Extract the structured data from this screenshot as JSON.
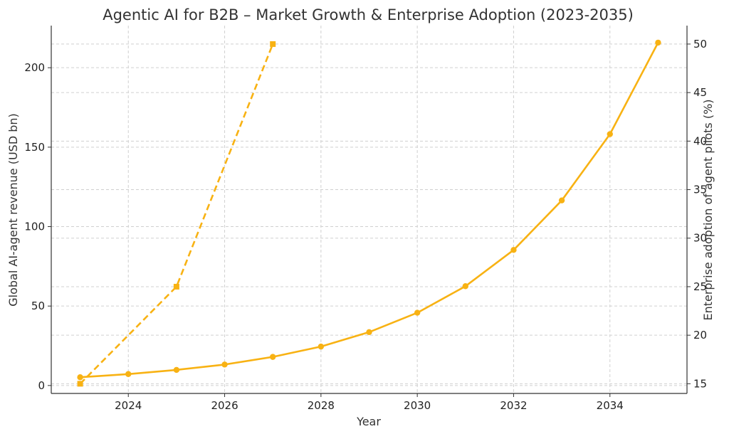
{
  "chart_data": {
    "type": "line",
    "title": "Agentic AI for B2B – Market Growth & Enterprise Adoption (2023-2035)",
    "xlabel": "Year",
    "ylabel": "Global AI-agent revenue (USD bn)",
    "y2label": "Enterprise adoption of agent pilots (%)",
    "xlim": [
      2022.4,
      2035.6
    ],
    "ylim": [
      -5,
      226.5
    ],
    "y2lim": [
      14,
      51.9
    ],
    "x_ticks": [
      "2024",
      "2026",
      "2028",
      "2030",
      "2032",
      "2034"
    ],
    "y_ticks": [
      "0",
      "50",
      "100",
      "150",
      "200"
    ],
    "y2_ticks": [
      "15",
      "20",
      "25",
      "30",
      "35",
      "40",
      "45",
      "50"
    ],
    "grid": true,
    "color": "#f8b213",
    "series": [
      {
        "axis": "left",
        "style": "solid",
        "marker": "circle",
        "x": [
          2023,
          2024,
          2025,
          2026,
          2027,
          2028,
          2029,
          2030,
          2031,
          2032,
          2033,
          2034,
          2035
        ],
        "values": [
          5.2,
          7.2,
          9.8,
          13.2,
          18.0,
          24.5,
          33.6,
          45.8,
          62.5,
          85.3,
          116.5,
          158.2,
          215.8
        ]
      },
      {
        "axis": "right",
        "style": "dashed",
        "marker": "square",
        "x": [
          2023,
          2025,
          2027
        ],
        "values": [
          15,
          25,
          50
        ]
      }
    ]
  }
}
